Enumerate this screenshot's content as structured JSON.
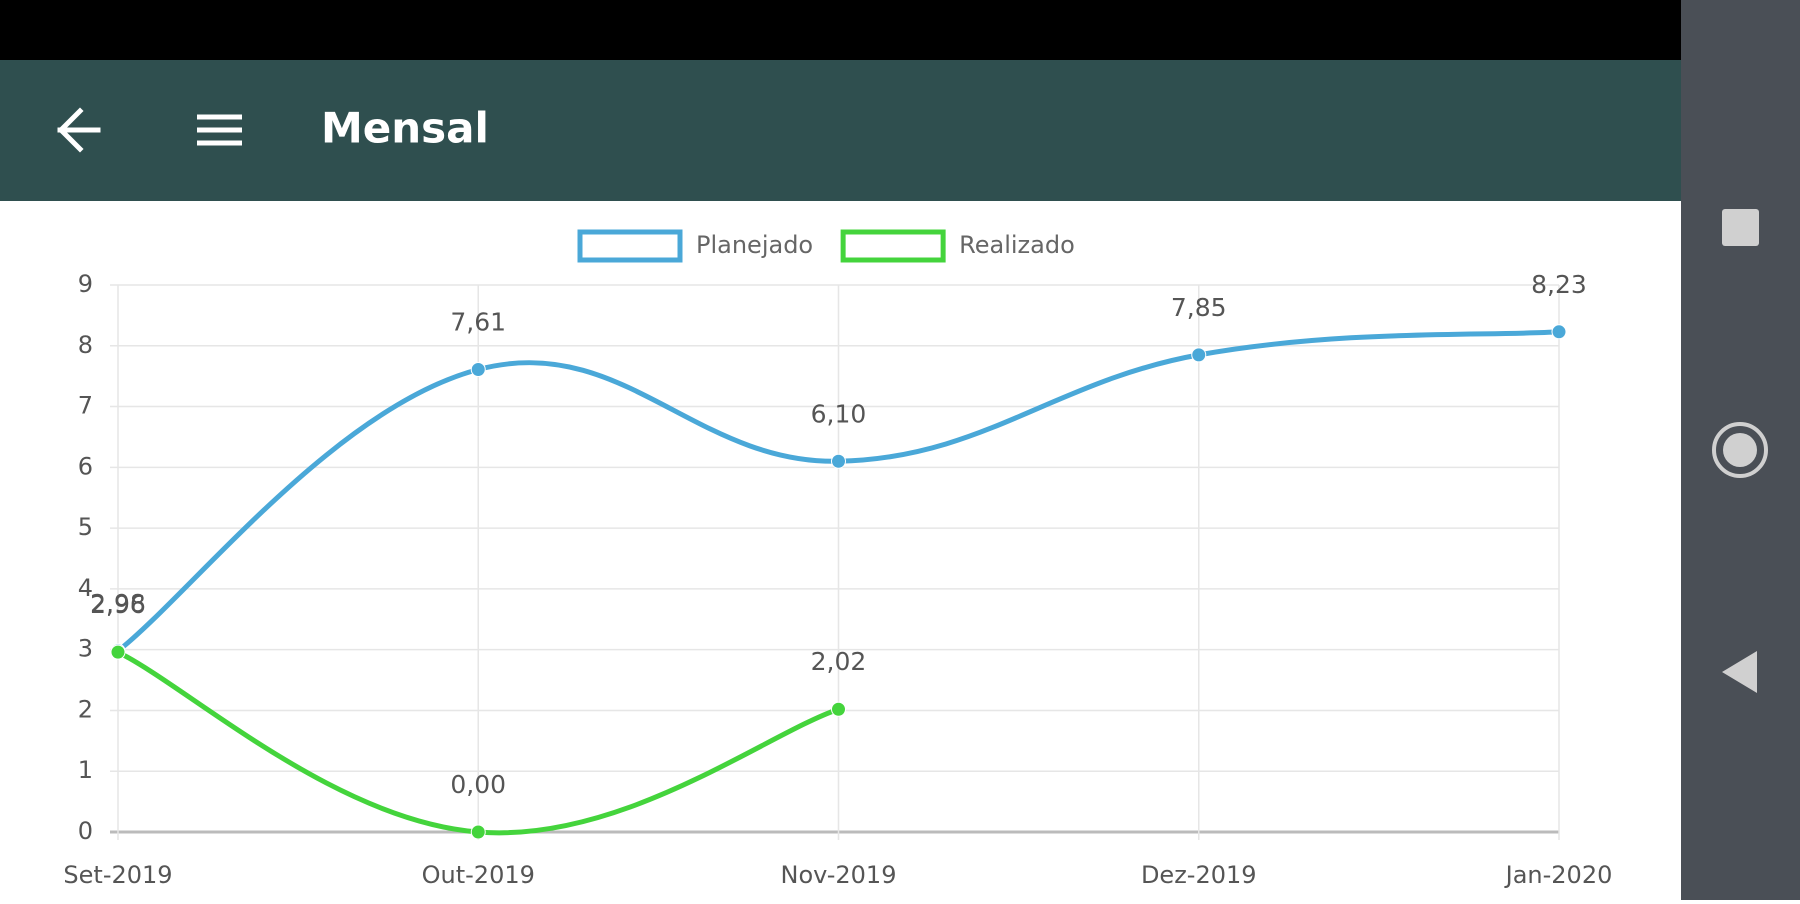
{
  "app_bar": {
    "title": "Mensal"
  },
  "chart_data": {
    "type": "line",
    "categories": [
      "Set-2019",
      "Out-2019",
      "Nov-2019",
      "Dez-2019",
      "Jan-2020"
    ],
    "series": [
      {
        "name": "Planejado",
        "color": "#4aa8d8",
        "values": [
          2.98,
          7.61,
          6.1,
          7.85,
          8.23
        ],
        "value_labels": [
          "2,98",
          "7,61",
          "6,10",
          "7,85",
          "8,23"
        ]
      },
      {
        "name": "Realizado",
        "color": "#44d43c",
        "values": [
          2.96,
          0.0,
          2.02,
          null,
          null
        ],
        "value_labels": [
          "2,96",
          "0,00",
          "2,02",
          null,
          null
        ]
      }
    ],
    "ylim": [
      0,
      9
    ],
    "yticks": [
      0,
      1,
      2,
      3,
      4,
      5,
      6,
      7,
      8,
      9
    ],
    "grid": true,
    "legend": "top"
  }
}
